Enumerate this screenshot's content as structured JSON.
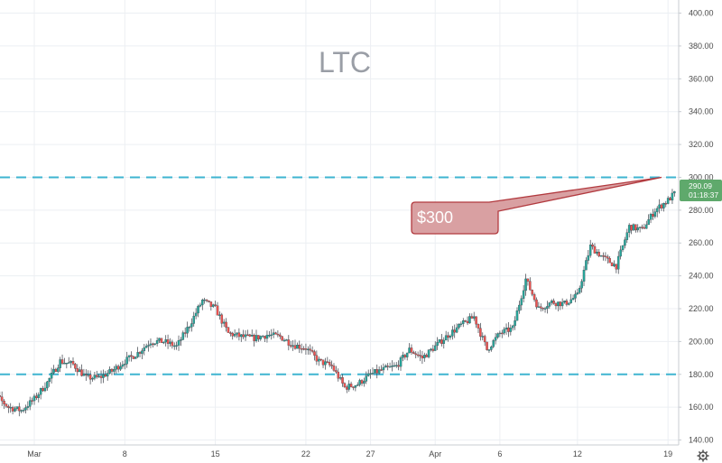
{
  "chart_data": {
    "type": "candlestick",
    "title": "LTC",
    "xlabel": "",
    "ylabel": "",
    "ylim": [
      126,
      408
    ],
    "grid": true,
    "y_ticks": [
      "140.00",
      "160.00",
      "180.00",
      "200.00",
      "220.00",
      "240.00",
      "260.00",
      "280.00",
      "300.00",
      "320.00",
      "340.00",
      "360.00",
      "380.00",
      "400.00"
    ],
    "x_ticks": [
      {
        "label": "Mar",
        "day": 6
      },
      {
        "label": "8",
        "day": 13
      },
      {
        "label": "15",
        "day": 20
      },
      {
        "label": "22",
        "day": 27
      },
      {
        "label": "27",
        "day": 32
      },
      {
        "label": "Apr",
        "day": 37
      },
      {
        "label": "6",
        "day": 42
      },
      {
        "label": "12",
        "day": 48
      },
      {
        "label": "19",
        "day": 55
      }
    ],
    "series": [
      {
        "values": [
          [
            2,
            178
          ],
          [
            3,
            167
          ],
          [
            4,
            160
          ],
          [
            5,
            158
          ],
          [
            6,
            165
          ],
          [
            7,
            175
          ],
          [
            8,
            188
          ],
          [
            9,
            186
          ],
          [
            10,
            178
          ],
          [
            11,
            178
          ],
          [
            12,
            182
          ],
          [
            13,
            188
          ],
          [
            14,
            193
          ],
          [
            15,
            200
          ],
          [
            16,
            200
          ],
          [
            17,
            197
          ],
          [
            18,
            210
          ],
          [
            19,
            225
          ],
          [
            20,
            220
          ],
          [
            21,
            205
          ],
          [
            22,
            203
          ],
          [
            23,
            202
          ],
          [
            24,
            204
          ],
          [
            25,
            203
          ],
          [
            26,
            198
          ],
          [
            27,
            196
          ],
          [
            28,
            188
          ],
          [
            29,
            185
          ],
          [
            30,
            172
          ],
          [
            31,
            174
          ],
          [
            32,
            180
          ],
          [
            33,
            183
          ],
          [
            34,
            185
          ],
          [
            35,
            195
          ],
          [
            36,
            190
          ],
          [
            37,
            197
          ],
          [
            38,
            204
          ],
          [
            39,
            210
          ],
          [
            40,
            215
          ],
          [
            41,
            195
          ],
          [
            42,
            205
          ],
          [
            43,
            208
          ],
          [
            44,
            238
          ],
          [
            45,
            220
          ],
          [
            46,
            224
          ],
          [
            47,
            223
          ],
          [
            48,
            228
          ],
          [
            49,
            258
          ],
          [
            50,
            251
          ],
          [
            51,
            246
          ],
          [
            52,
            270
          ],
          [
            53,
            268
          ],
          [
            54,
            280
          ],
          [
            55,
            286
          ],
          [
            55.5,
            290.09
          ]
        ]
      }
    ],
    "reference_lines": [
      300,
      180
    ],
    "annotation": "$300",
    "last_price": "290.09",
    "countdown": "01:18:37"
  },
  "colors": {
    "up": "#26a69a",
    "down": "#ef5350",
    "dashed_line": "#3fb4d0",
    "grid": "#eceff3",
    "callout_fill": "#d9a0a2",
    "callout_stroke": "#b23a3f",
    "badge": "#5fa96c"
  },
  "icons": {
    "settings": "gear-icon"
  }
}
